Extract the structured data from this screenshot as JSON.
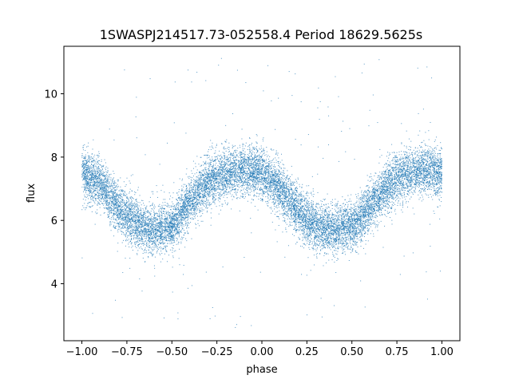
{
  "chart_data": {
    "type": "scatter",
    "title": "1SWASPJ214517.73-052558.4 Period 18629.5625s",
    "xlabel": "phase",
    "ylabel": "flux",
    "xlim": [
      -1.1,
      1.1
    ],
    "ylim": [
      2.2,
      11.5
    ],
    "xticks": [
      -1.0,
      -0.75,
      -0.5,
      -0.25,
      0.0,
      0.25,
      0.5,
      0.75,
      1.0
    ],
    "xtick_labels": [
      "−1.00",
      "−0.75",
      "−0.50",
      "−0.25",
      "0.00",
      "0.25",
      "0.50",
      "0.75",
      "1.00"
    ],
    "yticks": [
      4,
      6,
      8,
      10
    ],
    "ytick_labels": [
      "4",
      "6",
      "8",
      "10"
    ],
    "grid": false,
    "marker_color": "#1f77b4",
    "series": [
      {
        "phase": [
          -1.0,
          -0.9,
          -0.8,
          -0.7,
          -0.6,
          -0.5,
          -0.4,
          -0.3,
          -0.2,
          -0.1,
          0.0,
          0.1,
          0.2,
          0.3,
          0.4,
          0.5,
          0.6,
          0.7,
          0.8,
          0.9,
          1.0
        ],
        "flux_median": [
          7.5,
          7.2,
          6.4,
          5.9,
          5.7,
          5.8,
          6.6,
          7.2,
          7.5,
          7.6,
          7.5,
          7.0,
          6.3,
          5.8,
          5.7,
          5.8,
          6.4,
          7.1,
          7.5,
          7.6,
          7.5
        ],
        "flux_spread": 0.85,
        "n_points": 14000
      }
    ]
  }
}
